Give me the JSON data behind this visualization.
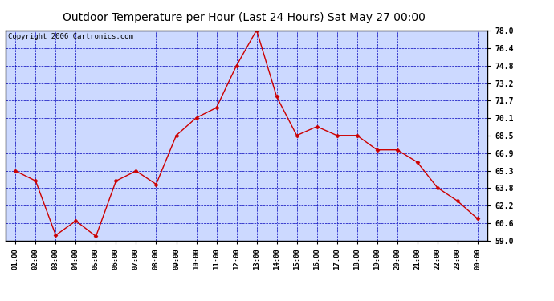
{
  "title": "Outdoor Temperature per Hour (Last 24 Hours) Sat May 27 00:00",
  "copyright_text": "Copyright 2006 Cartronics.com",
  "x_labels": [
    "01:00",
    "02:00",
    "03:00",
    "04:00",
    "05:00",
    "06:00",
    "07:00",
    "08:00",
    "09:00",
    "10:00",
    "11:00",
    "12:00",
    "13:00",
    "14:00",
    "15:00",
    "16:00",
    "17:00",
    "18:00",
    "19:00",
    "20:00",
    "21:00",
    "22:00",
    "23:00",
    "00:00"
  ],
  "temperatures": [
    65.3,
    64.4,
    59.5,
    60.8,
    59.4,
    64.4,
    65.3,
    64.1,
    68.5,
    70.1,
    71.0,
    74.8,
    78.0,
    72.0,
    68.5,
    69.3,
    68.5,
    68.5,
    67.2,
    67.2,
    66.1,
    63.8,
    62.6,
    61.0
  ],
  "ylim": [
    59.0,
    78.0
  ],
  "yticks": [
    59.0,
    60.6,
    62.2,
    63.8,
    65.3,
    66.9,
    68.5,
    70.1,
    71.7,
    73.2,
    74.8,
    76.4,
    78.0
  ],
  "line_color": "#cc0000",
  "marker": "D",
  "marker_size": 2.5,
  "plot_bg_color": "#ccd9ff",
  "grid_color": "#0000bb",
  "title_fontsize": 10,
  "copyright_fontsize": 6.5
}
